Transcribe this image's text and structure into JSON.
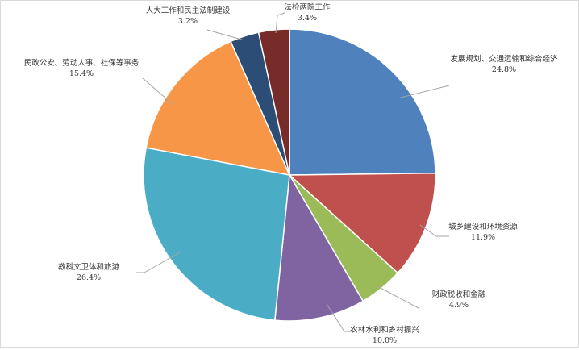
{
  "chart_data": {
    "type": "pie",
    "start_angle": "12 o'clock",
    "direction": "clockwise",
    "slices": [
      {
        "label": "发展规划、交通运输和综合经济",
        "value": 24.8,
        "display": "24.8%",
        "color": "#4F81BD"
      },
      {
        "label": "城乡建设和环境资源",
        "value": 11.9,
        "display": "11.9%",
        "color": "#C0504D"
      },
      {
        "label": "财政税收和金融",
        "value": 4.9,
        "display": "4.9%",
        "color": "#9BBB59"
      },
      {
        "label": "农林水利和乡村振兴",
        "value": 10.0,
        "display": "10.0%",
        "color": "#8064A2"
      },
      {
        "label": "教科文卫体和旅游",
        "value": 26.4,
        "display": "26.4%",
        "color": "#4BACC6"
      },
      {
        "label": "民政公安、劳动人事、社保等事务",
        "value": 15.4,
        "display": "15.4%",
        "color": "#F79646"
      },
      {
        "label": "人大工作和民主法制建设",
        "value": 3.2,
        "display": "3.2%",
        "color": "#2C4D75"
      },
      {
        "label": "法检两院工作",
        "value": 3.4,
        "display": "3.4%",
        "color": "#772C2A"
      }
    ]
  }
}
